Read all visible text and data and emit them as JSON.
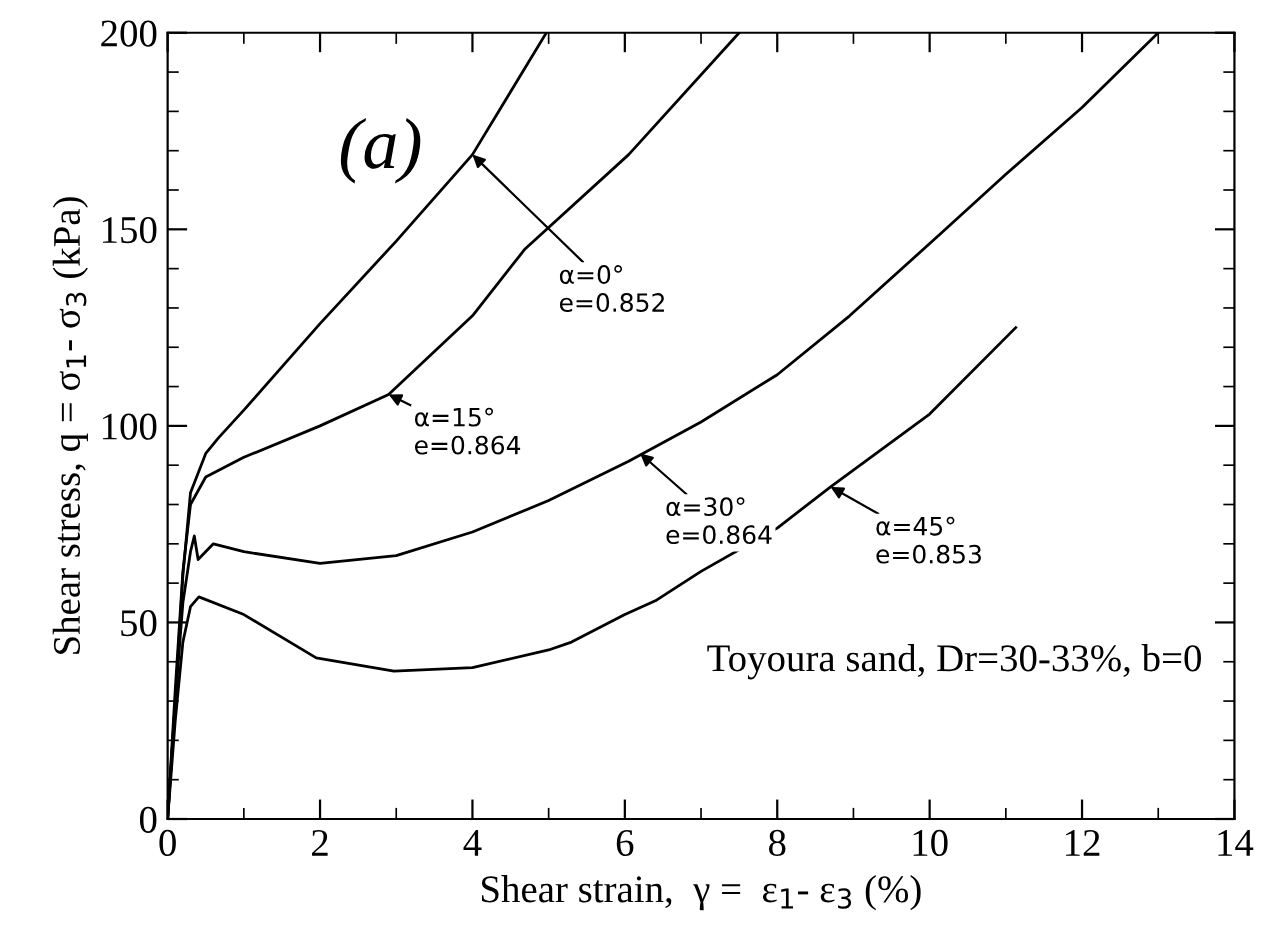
{
  "chart_data": {
    "type": "line",
    "xlabel": "Shear strain,  γ =  ε$_{1}$- ε$_{3}$ (%)",
    "ylabel": "Shear stress, q = σ$_{1}$- σ$_{3}$ (kPa)",
    "xlim": [
      0,
      14
    ],
    "ylim": [
      0,
      200
    ],
    "xticks": [
      0,
      2,
      4,
      6,
      8,
      10,
      12,
      14
    ],
    "yticks": [
      0,
      50,
      100,
      150,
      200
    ],
    "grid": false,
    "legend": false,
    "marker": "none",
    "line_style": "solid",
    "series": [
      {
        "color": "#000000",
        "x": [
          0,
          0.1,
          0.2,
          0.3,
          0.5,
          0.67,
          1,
          1.5,
          2,
          3,
          4,
          4.97
        ],
        "values": [
          0,
          30,
          62,
          83,
          93,
          97,
          104,
          115,
          126,
          147,
          169,
          200
        ]
      },
      {
        "color": "#000000",
        "x": [
          0,
          0.1,
          0.2,
          0.3,
          0.5,
          1,
          2,
          2.9,
          4,
          4.69,
          6.05,
          7.5
        ],
        "values": [
          0,
          33,
          63,
          80,
          87,
          92,
          100,
          108,
          128,
          145,
          169,
          200
        ]
      },
      {
        "color": "#000000",
        "x": [
          0,
          0.1,
          0.2,
          0.3,
          0.35,
          0.4,
          0.6,
          1,
          2,
          3,
          4,
          5,
          6.05,
          7,
          8,
          8.95,
          10.15,
          11,
          12,
          13
        ],
        "values": [
          0,
          30,
          55,
          68,
          72,
          66,
          70,
          68,
          65,
          67,
          73,
          81,
          91,
          101,
          113,
          128,
          149,
          164,
          181,
          200
        ]
      },
      {
        "color": "#000000",
        "x": [
          0,
          0.1,
          0.2,
          0.3,
          0.41,
          1,
          1.95,
          2.97,
          4,
          5,
          5.3,
          6,
          6.4,
          7,
          8,
          8.7,
          10,
          11.13
        ],
        "values": [
          0,
          25,
          45,
          54,
          56.5,
          52,
          41,
          37.6,
          38.5,
          43,
          45,
          52,
          55.5,
          63,
          74,
          84.5,
          103,
          125
        ]
      }
    ],
    "annotations": [
      "(a)",
      "Toyoura sand, Dr=30-33%, b=0",
      {
        "text": "α=0°\ne=0.852",
        "x": 4,
        "y": 169
      },
      {
        "text": "α=15°\ne=0.864",
        "x": 2.9,
        "y": 108
      },
      {
        "text": "α=30°\ne=0.864",
        "x": 6.2,
        "y": 93
      },
      {
        "text": "α=45°\ne=0.853",
        "x": 8.7,
        "y": 84.5
      }
    ]
  }
}
